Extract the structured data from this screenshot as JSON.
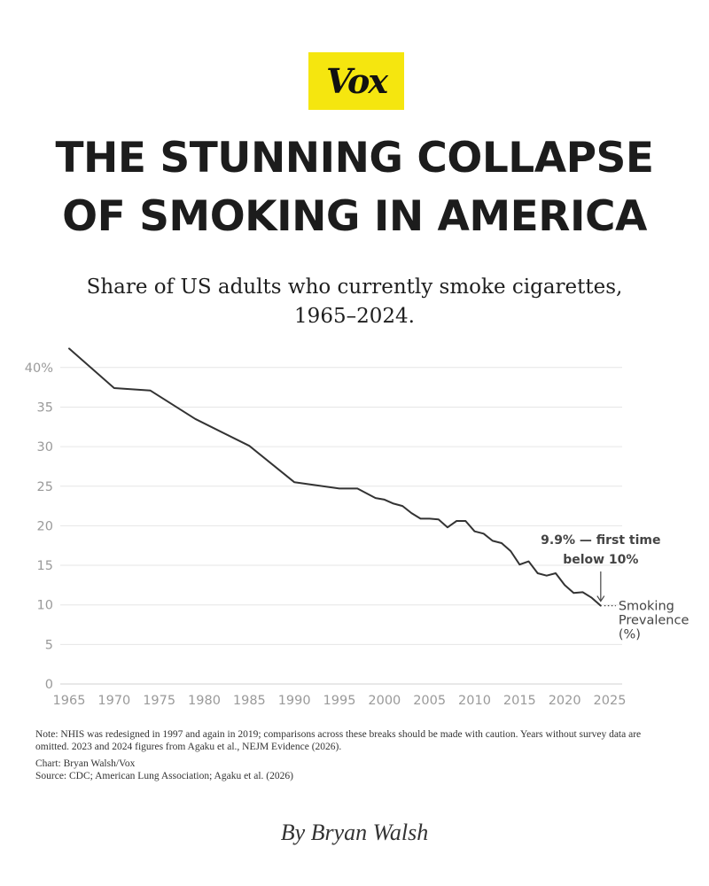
{
  "logo": {
    "text": "Vox",
    "background": "#f5e60f"
  },
  "headline": {
    "line1": "THE STUNNING COLLAPSE",
    "line2": "OF SMOKING IN AMERICA"
  },
  "subtitle": {
    "line1": "Share of US adults who currently smoke cigarettes,",
    "line2": "1965–2024."
  },
  "chart_data": {
    "type": "line",
    "title": "Share of US adults who currently smoke cigarettes, 1965–2024.",
    "xlim": [
      1965,
      2025
    ],
    "ylim": [
      0,
      42
    ],
    "x_ticks": [
      1965,
      1970,
      1975,
      1980,
      1985,
      1990,
      1995,
      2000,
      2005,
      2010,
      2015,
      2020,
      2025
    ],
    "y_ticks": [
      0,
      5,
      10,
      15,
      20,
      25,
      30,
      35,
      40
    ],
    "y_tick_labels": [
      "0",
      "5",
      "10",
      "15",
      "20",
      "25",
      "30",
      "35",
      "40%"
    ],
    "grid": "horizontal",
    "line_color": "#333333",
    "series": [
      {
        "name": "Smoking Prevalence (%)",
        "label_lines": [
          "Smoking",
          "Prevalence",
          "(%)"
        ],
        "x": [
          1965,
          1970,
          1974,
          1979,
          1985,
          1990,
          1995,
          1997,
          1999,
          2000,
          2001,
          2002,
          2003,
          2004,
          2005,
          2006,
          2007,
          2008,
          2009,
          2010,
          2011,
          2012,
          2013,
          2014,
          2015,
          2016,
          2017,
          2018,
          2019,
          2020,
          2021,
          2022,
          2023,
          2024
        ],
        "y": [
          42.4,
          37.4,
          37.1,
          33.5,
          30.1,
          25.5,
          24.7,
          24.7,
          23.5,
          23.3,
          22.8,
          22.5,
          21.6,
          20.9,
          20.9,
          20.8,
          19.8,
          20.6,
          20.6,
          19.3,
          19.0,
          18.1,
          17.8,
          16.8,
          15.1,
          15.5,
          14.0,
          13.7,
          14.0,
          12.5,
          11.5,
          11.6,
          10.9,
          9.9
        ]
      }
    ],
    "annotation": {
      "lines": [
        "9.9% — first time",
        "below 10%"
      ],
      "x": 2024,
      "y": 9.9
    }
  },
  "notes": {
    "note": "Note: NHIS was redesigned in 1997 and again in 2019; comparisons across these breaks should be made with caution. Years without survey data are omitted. 2023 and 2024 figures from Agaku et al., NEJM Evidence (2026).",
    "chart_credit": "Chart: Bryan Walsh/Vox",
    "source": "Source: CDC; American Lung Association; Agaku et al. (2026)"
  },
  "byline": "By Bryan Walsh"
}
